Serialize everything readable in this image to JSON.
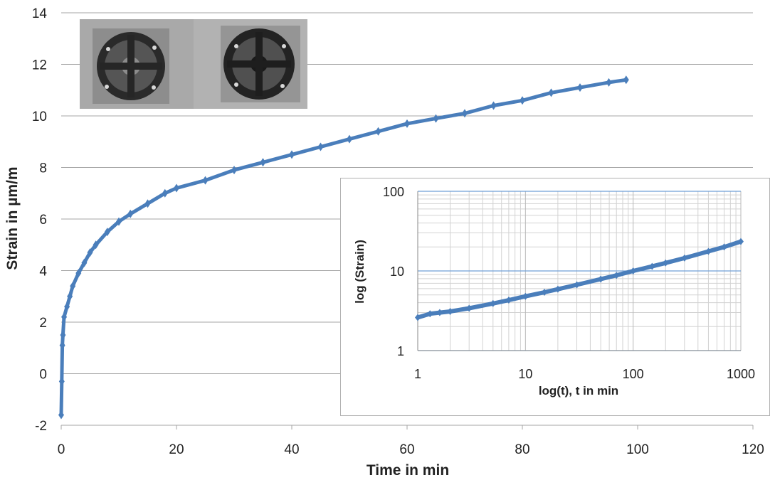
{
  "chart_data": [
    {
      "type": "scatter",
      "xlabel": "Time in min",
      "ylabel": "Strain in µm/m",
      "xlim": [
        0,
        120
      ],
      "ylim": [
        -2,
        14
      ],
      "xticks": [
        "0",
        "20",
        "40",
        "60",
        "80",
        "100",
        "120"
      ],
      "yticks": [
        "-2",
        "0",
        "2",
        "4",
        "6",
        "8",
        "10",
        "12",
        "14"
      ],
      "grid": "horizontal",
      "series": [
        {
          "color": "#4a7ebb",
          "markers": "diamond-with-line",
          "x": [
            0.0,
            0.1,
            0.2,
            0.3,
            0.5,
            1,
            1.5,
            2,
            3,
            4,
            5,
            6,
            8,
            10,
            12,
            15,
            18,
            20,
            25,
            30,
            35,
            40,
            45,
            50,
            55,
            60,
            65,
            70,
            75,
            80,
            85,
            90,
            95,
            98
          ],
          "y": [
            -1.6,
            -0.3,
            1.1,
            1.5,
            2.2,
            2.6,
            3.0,
            3.4,
            3.9,
            4.3,
            4.7,
            5.0,
            5.5,
            5.9,
            6.2,
            6.6,
            7.0,
            7.2,
            7.5,
            7.9,
            8.2,
            8.5,
            8.8,
            9.1,
            9.4,
            9.7,
            9.9,
            10.1,
            10.4,
            10.6,
            10.9,
            11.1,
            11.3,
            11.4
          ]
        }
      ]
    },
    {
      "type": "scatter",
      "xlabel": "log(t),  t in min",
      "ylabel": "log  (Strain)",
      "xscale": "log",
      "yscale": "log",
      "xlim": [
        1,
        1000
      ],
      "ylim": [
        1,
        100
      ],
      "xticks": [
        "1",
        "10",
        "100",
        "1000"
      ],
      "yticks": [
        "1",
        "10",
        "100"
      ],
      "grid": "both",
      "series": [
        {
          "color": "#4a7ebb",
          "x": [
            1,
            1.3,
            1.6,
            2,
            3,
            5,
            7,
            10,
            15,
            20,
            30,
            50,
            70,
            100,
            150,
            200,
            300,
            500,
            700,
            1000
          ],
          "y": [
            2.6,
            2.9,
            3.0,
            3.1,
            3.4,
            3.9,
            4.3,
            4.8,
            5.4,
            5.9,
            6.7,
            7.9,
            8.8,
            10.0,
            11.4,
            12.6,
            14.5,
            17.6,
            20.0,
            23.4
          ]
        }
      ]
    }
  ]
}
